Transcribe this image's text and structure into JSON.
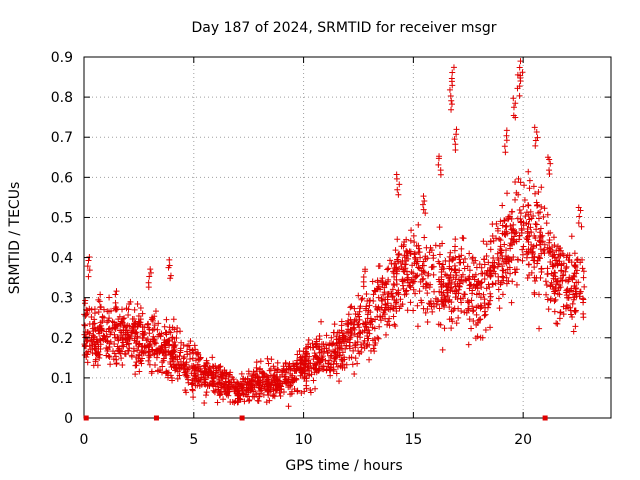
{
  "chart_data": {
    "type": "scatter",
    "title": "Day 187 of 2024, SRMTID for receiver msgr",
    "xlabel": "GPS time / hours",
    "ylabel": "SRMTID / TECUs",
    "xlim": [
      0,
      24
    ],
    "ylim": [
      0,
      0.9
    ],
    "xticks": [
      0,
      5,
      10,
      15,
      20
    ],
    "xtick_labels": [
      "0",
      "5",
      "10",
      "15",
      "20"
    ],
    "yticks": [
      0,
      0.1,
      0.2,
      0.3,
      0.4,
      0.5,
      0.6,
      0.7,
      0.8,
      0.9
    ],
    "ytick_labels": [
      "0",
      "0.1",
      "0.2",
      "0.3",
      "0.4",
      "0.5",
      "0.6",
      "0.7",
      "0.8",
      "0.9"
    ],
    "grid": true,
    "marker": "plus",
    "color": "#e00000",
    "baseline_markers_x": [
      0.1,
      3.3,
      7.2,
      21.0
    ],
    "trend": [
      {
        "x": 0.0,
        "y": 0.22,
        "spread": 0.09
      },
      {
        "x": 1.0,
        "y": 0.2,
        "spread": 0.08
      },
      {
        "x": 2.0,
        "y": 0.21,
        "spread": 0.08
      },
      {
        "x": 3.0,
        "y": 0.19,
        "spread": 0.08
      },
      {
        "x": 4.0,
        "y": 0.16,
        "spread": 0.07
      },
      {
        "x": 5.0,
        "y": 0.12,
        "spread": 0.06
      },
      {
        "x": 6.0,
        "y": 0.1,
        "spread": 0.05
      },
      {
        "x": 7.0,
        "y": 0.07,
        "spread": 0.04
      },
      {
        "x": 8.0,
        "y": 0.09,
        "spread": 0.05
      },
      {
        "x": 9.0,
        "y": 0.09,
        "spread": 0.05
      },
      {
        "x": 10.0,
        "y": 0.13,
        "spread": 0.06
      },
      {
        "x": 11.0,
        "y": 0.15,
        "spread": 0.07
      },
      {
        "x": 12.0,
        "y": 0.19,
        "spread": 0.08
      },
      {
        "x": 13.0,
        "y": 0.24,
        "spread": 0.09
      },
      {
        "x": 14.0,
        "y": 0.32,
        "spread": 0.1
      },
      {
        "x": 15.0,
        "y": 0.38,
        "spread": 0.11
      },
      {
        "x": 16.0,
        "y": 0.33,
        "spread": 0.12
      },
      {
        "x": 17.0,
        "y": 0.34,
        "spread": 0.13
      },
      {
        "x": 18.0,
        "y": 0.31,
        "spread": 0.12
      },
      {
        "x": 19.0,
        "y": 0.4,
        "spread": 0.13
      },
      {
        "x": 20.0,
        "y": 0.48,
        "spread": 0.16
      },
      {
        "x": 21.0,
        "y": 0.4,
        "spread": 0.14
      },
      {
        "x": 22.0,
        "y": 0.32,
        "spread": 0.11
      },
      {
        "x": 22.8,
        "y": 0.33,
        "spread": 0.11
      }
    ],
    "peaks": [
      {
        "x": 0.2,
        "y": 0.41
      },
      {
        "x": 1.5,
        "y": 0.32
      },
      {
        "x": 3.0,
        "y": 0.38
      },
      {
        "x": 3.9,
        "y": 0.4
      },
      {
        "x": 12.8,
        "y": 0.38
      },
      {
        "x": 14.3,
        "y": 0.61
      },
      {
        "x": 15.5,
        "y": 0.56
      },
      {
        "x": 16.2,
        "y": 0.66
      },
      {
        "x": 16.8,
        "y": 0.88
      },
      {
        "x": 16.7,
        "y": 0.82
      },
      {
        "x": 16.9,
        "y": 0.72
      },
      {
        "x": 19.2,
        "y": 0.72
      },
      {
        "x": 19.6,
        "y": 0.8
      },
      {
        "x": 19.9,
        "y": 0.89
      },
      {
        "x": 19.8,
        "y": 0.86
      },
      {
        "x": 20.6,
        "y": 0.73
      },
      {
        "x": 21.2,
        "y": 0.66
      },
      {
        "x": 22.6,
        "y": 0.53
      }
    ]
  }
}
